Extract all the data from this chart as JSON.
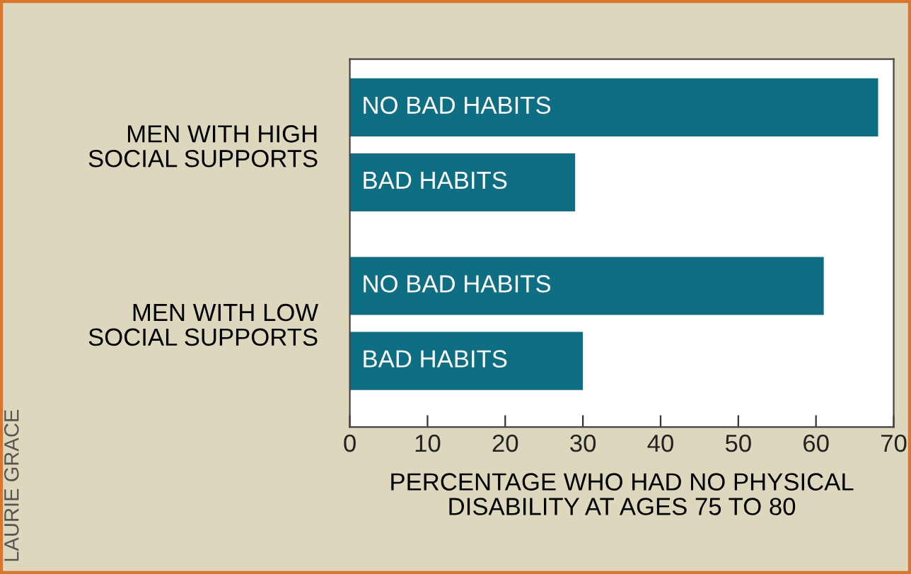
{
  "chart_data": {
    "type": "bar",
    "orientation": "horizontal",
    "categories": [
      "MEN WITH HIGH\nSOCIAL SUPPORTS",
      "MEN WITH LOW\nSOCIAL SUPPORTS"
    ],
    "series": [
      {
        "name": "NO BAD HABITS",
        "color": "#0e6f84",
        "values": [
          68,
          61
        ]
      },
      {
        "name": "BAD HABITS",
        "color": "#0e6f84",
        "values": [
          29,
          30
        ]
      }
    ],
    "xlabel": "PERCENTAGE WHO HAD NO PHYSICAL\nDISABILITY AT AGES 75 TO 80",
    "xlim": [
      0,
      70
    ],
    "xticks": [
      0,
      10,
      20,
      30,
      40,
      50,
      60,
      70
    ],
    "grid": false,
    "legend": false,
    "annotations": [
      "LAURIE GRACE"
    ]
  }
}
